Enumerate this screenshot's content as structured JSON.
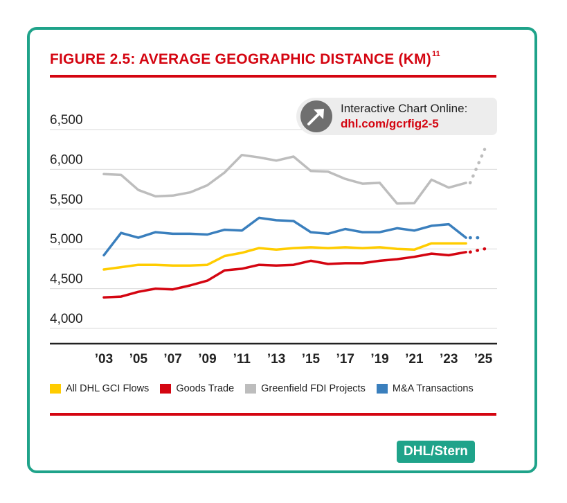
{
  "figure": {
    "title": "FIGURE 2.5: AVERAGE GEOGRAPHIC DISTANCE (KM)",
    "title_sup": "11"
  },
  "callout": {
    "line1": "Interactive Chart Online:",
    "line2": "dhl.com/gcrfig2-5"
  },
  "source": "DHL/Stern",
  "colors": {
    "brand_red": "#d40511",
    "teal": "#1fa38a",
    "yellow": "#ffcc00",
    "gray": "#bdbdbd",
    "blue": "#3a7fbd"
  },
  "chart_data": {
    "type": "line",
    "title": "FIGURE 2.5: AVERAGE GEOGRAPHIC DISTANCE (KM)",
    "xlabel": "",
    "ylabel": "",
    "xlim": [
      2003,
      2025
    ],
    "ylim": [
      3850,
      6750
    ],
    "grid": true,
    "y_ticks": [
      4000,
      4500,
      5000,
      5500,
      6000,
      6500
    ],
    "y_tick_labels": [
      "4,000",
      "4,500",
      "5,000",
      "5,500",
      "6,000",
      "6,500"
    ],
    "x_ticks": [
      2003,
      2005,
      2007,
      2009,
      2011,
      2013,
      2015,
      2017,
      2019,
      2021,
      2023,
      2025
    ],
    "x_tick_labels": [
      "’03",
      "’05",
      "’07",
      "’09",
      "’11",
      "’13",
      "’15",
      "’17",
      "’19",
      "’21",
      "’23",
      "’25"
    ],
    "x": [
      2003,
      2004,
      2005,
      2006,
      2007,
      2008,
      2009,
      2010,
      2011,
      2012,
      2013,
      2014,
      2015,
      2016,
      2017,
      2018,
      2019,
      2020,
      2021,
      2022,
      2023,
      2024
    ],
    "series": [
      {
        "name": "Greenfield FDI Projects",
        "color": "#bdbdbd",
        "values": [
          5940,
          5930,
          5740,
          5660,
          5670,
          5710,
          5800,
          5960,
          6180,
          6150,
          6110,
          6160,
          5980,
          5970,
          5880,
          5820,
          5830,
          5570,
          5575,
          5870,
          5770,
          5830
        ],
        "projection": {
          "x": [
            2024,
            2025
          ],
          "values": [
            5830,
            6250
          ]
        }
      },
      {
        "name": "M&A Transactions",
        "color": "#3a7fbd",
        "values": [
          4920,
          5200,
          5140,
          5210,
          5190,
          5190,
          5180,
          5240,
          5230,
          5390,
          5360,
          5350,
          5210,
          5190,
          5250,
          5210,
          5210,
          5260,
          5230,
          5290,
          5310,
          5140
        ],
        "projection": {
          "x": [
            2024,
            2025
          ],
          "values": [
            5140,
            5140
          ]
        }
      },
      {
        "name": "All DHL GCI Flows",
        "color": "#ffcc00",
        "values": [
          4740,
          4770,
          4800,
          4800,
          4790,
          4790,
          4800,
          4910,
          4950,
          5010,
          4990,
          5010,
          5020,
          5010,
          5020,
          5010,
          5020,
          5000,
          4990,
          5070,
          5070,
          5070
        ],
        "projection": null
      },
      {
        "name": "Goods Trade",
        "color": "#d40511",
        "values": [
          4390,
          4400,
          4460,
          4500,
          4490,
          4540,
          4600,
          4730,
          4750,
          4800,
          4790,
          4800,
          4850,
          4810,
          4820,
          4820,
          4850,
          4870,
          4900,
          4940,
          4920,
          4960
        ],
        "projection": {
          "x": [
            2024,
            2025
          ],
          "values": [
            4960,
            5000
          ]
        }
      }
    ],
    "legend": [
      "All DHL GCI Flows",
      "Goods Trade",
      "Greenfield FDI Projects",
      "M&A Transactions"
    ],
    "legend_position": "bottom"
  }
}
